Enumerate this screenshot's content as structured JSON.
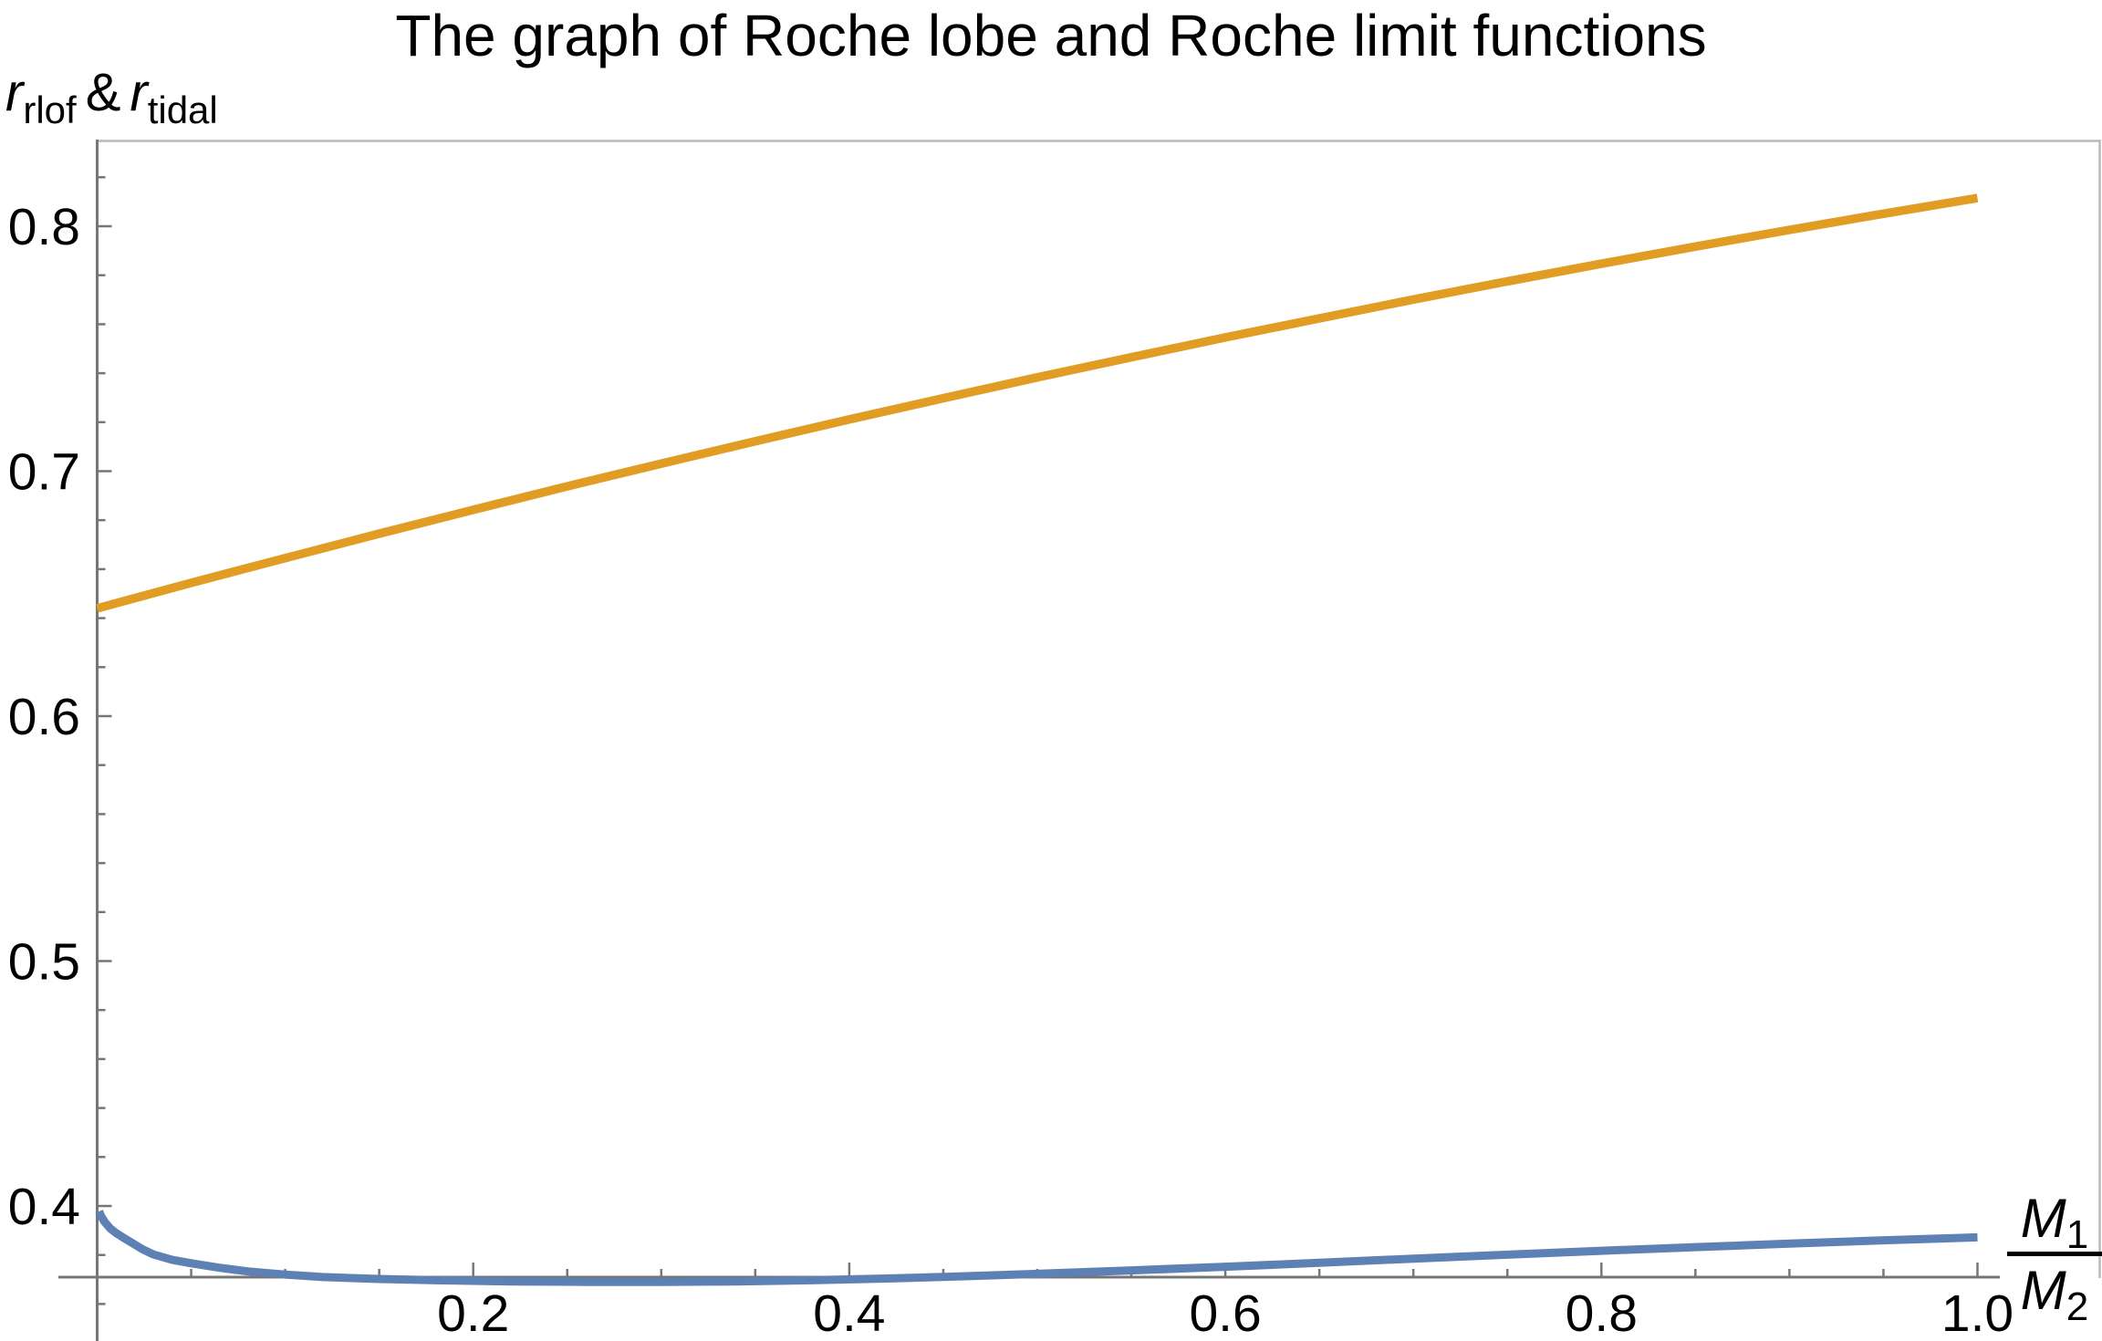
{
  "title": "The graph of Roche lobe and Roche limit functions",
  "y_axis_label": {
    "var1": "r",
    "var1_sub": "rlof",
    "amp": "&",
    "var2": "r",
    "var2_sub": "tidal"
  },
  "x_axis_label": {
    "num": "M",
    "num_sub": "1",
    "den": "M",
    "den_sub": "2"
  },
  "chart_data": {
    "type": "line",
    "title": "The graph of Roche lobe and Roche limit functions",
    "xlabel": "M_1/M_2",
    "ylabel": "r_rlof & r_tidal",
    "xlim": [
      0,
      1.065
    ],
    "ylim": [
      0.371,
      0.835
    ],
    "grid": false,
    "legend": "none",
    "axis_color": "#767676",
    "border_color": "#b9b9b9",
    "x_ticks": {
      "major": [
        0.2,
        0.4,
        0.6,
        0.8,
        1.0
      ],
      "labels": [
        "0.2",
        "0.4",
        "0.6",
        "0.8",
        "1.0"
      ],
      "minor_step": 0.05,
      "minor_range": [
        0.05,
        1.0
      ]
    },
    "y_ticks": {
      "major": [
        0.4,
        0.5,
        0.6,
        0.7,
        0.8
      ],
      "labels": [
        "0.4",
        "0.5",
        "0.6",
        "0.7",
        "0.8"
      ],
      "minor_step": 0.02,
      "minor_range": [
        0.36,
        0.82
      ]
    },
    "series": [
      {
        "name": "r_tidal (upper orange curve)",
        "color": "#E19C24",
        "stroke_width": 9.5,
        "points": [
          [
            0,
            0.644
          ],
          [
            0.05,
            0.6544
          ],
          [
            0.1,
            0.6645
          ],
          [
            0.15,
            0.6745
          ],
          [
            0.2,
            0.6842
          ],
          [
            0.25,
            0.6938
          ],
          [
            0.3,
            0.7031
          ],
          [
            0.35,
            0.7122
          ],
          [
            0.4,
            0.7211
          ],
          [
            0.45,
            0.7298
          ],
          [
            0.5,
            0.7383
          ],
          [
            0.55,
            0.7465
          ],
          [
            0.6,
            0.7546
          ],
          [
            0.65,
            0.7624
          ],
          [
            0.7,
            0.7701
          ],
          [
            0.75,
            0.7775
          ],
          [
            0.8,
            0.7847
          ],
          [
            0.85,
            0.7917
          ],
          [
            0.9,
            0.7985
          ],
          [
            0.95,
            0.8051
          ],
          [
            1.0,
            0.8115
          ]
        ]
      },
      {
        "name": "r_rlof (lower blue curve)",
        "color": "#5E81B5",
        "stroke_width": 9,
        "points": [
          [
            0.001,
            0.3978
          ],
          [
            0.002,
            0.396
          ],
          [
            0.004,
            0.3935
          ],
          [
            0.007,
            0.3908
          ],
          [
            0.01,
            0.389
          ],
          [
            0.014,
            0.387
          ],
          [
            0.018,
            0.3852
          ],
          [
            0.024,
            0.3824
          ],
          [
            0.03,
            0.3802
          ],
          [
            0.04,
            0.378
          ],
          [
            0.05,
            0.3766
          ],
          [
            0.065,
            0.3748
          ],
          [
            0.08,
            0.3733
          ],
          [
            0.1,
            0.372
          ],
          [
            0.12,
            0.371
          ],
          [
            0.15,
            0.3702
          ],
          [
            0.18,
            0.3697
          ],
          [
            0.22,
            0.3692
          ],
          [
            0.26,
            0.369
          ],
          [
            0.3,
            0.369
          ],
          [
            0.34,
            0.3692
          ],
          [
            0.38,
            0.3697
          ],
          [
            0.42,
            0.3704
          ],
          [
            0.46,
            0.3713
          ],
          [
            0.5,
            0.3723
          ],
          [
            0.55,
            0.3737
          ],
          [
            0.6,
            0.3752
          ],
          [
            0.65,
            0.3768
          ],
          [
            0.7,
            0.3785
          ],
          [
            0.75,
            0.3801
          ],
          [
            0.8,
            0.3817
          ],
          [
            0.85,
            0.3832
          ],
          [
            0.9,
            0.3846
          ],
          [
            0.95,
            0.386
          ],
          [
            1.0,
            0.3872
          ]
        ]
      }
    ]
  }
}
